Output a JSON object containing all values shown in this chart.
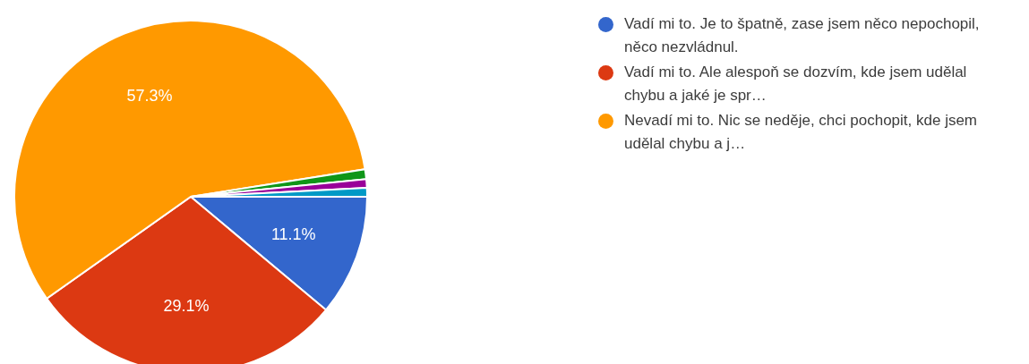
{
  "chart_data": {
    "type": "pie",
    "categories": [
      "Vadí mi to. Je to špatně, zase jsem něco nepochopil, něco nezvládnul.",
      "Vadí mi to. Ale alespoň se dozvím, kde jsem udělal chybu a jaké je spr…",
      "Nevadí mi to. Nic se neděje, chci pochopit, kde jsem udělal chybu a j…",
      null,
      null,
      null
    ],
    "values": [
      11.1,
      29.1,
      57.3,
      0.9,
      0.8,
      0.8
    ],
    "colors": [
      "#3366cc",
      "#dc3912",
      "#ff9900",
      "#109618",
      "#990099",
      "#0099c6"
    ],
    "value_labels": [
      "11.1%",
      "29.1%",
      "57.3%",
      null,
      null,
      null
    ],
    "legend": "right"
  }
}
